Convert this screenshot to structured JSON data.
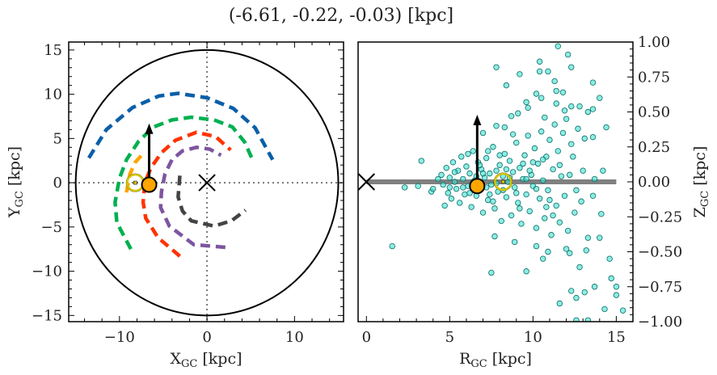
{
  "chart_data": [
    {
      "type": "line",
      "title": "(-6.61, -0.22, -0.03) [kpc]",
      "xlabel": {
        "main": "X",
        "sub": "GC",
        "unit": " [kpc]"
      },
      "ylabel": {
        "main": "Y",
        "sub": "GC",
        "unit": " [kpc]"
      },
      "xlim": [
        -15.8,
        15.6
      ],
      "ylim": [
        -15.7,
        15.9
      ],
      "xticks": [
        -10,
        0,
        10
      ],
      "xtick_labels": [
        "−10",
        "0",
        "10"
      ],
      "yticks": [
        15,
        10,
        5,
        0,
        -5,
        -10,
        -15
      ],
      "ytick_labels": [
        "15",
        "10",
        "5",
        "0",
        "−5",
        "−10",
        "−15"
      ],
      "boundary_circle_radius": 15,
      "reference_lines": {
        "x": 0,
        "y": 0,
        "style": "dotted",
        "color": "#777777"
      },
      "galactic_center_marker": {
        "x": 0,
        "y": 0,
        "marker": "x"
      },
      "sun_marker": {
        "x": -8.2,
        "y": 0,
        "color": "#d4c400"
      },
      "object_marker": {
        "x": -6.61,
        "y": -0.22,
        "color": "#ffa500"
      },
      "velocity_arrow": {
        "from": [
          -6.61,
          -0.22
        ],
        "to": [
          -6.61,
          6.7
        ]
      },
      "series": [
        {
          "color": "#0a5fa8",
          "style": "dashed",
          "points": [
            [
              -13.5,
              2.8
            ],
            [
              -11.5,
              6.0
            ],
            [
              -8.5,
              8.5
            ],
            [
              -5.5,
              9.8
            ],
            [
              -3.3,
              10.1
            ],
            [
              0,
              9.6
            ],
            [
              3,
              8.4
            ],
            [
              5.5,
              6.2
            ],
            [
              7.5,
              2.6
            ]
          ]
        },
        {
          "color": "#00b050",
          "style": "dashed",
          "points": [
            [
              -8.7,
              -7.5
            ],
            [
              -10.3,
              -4.5
            ],
            [
              -10.5,
              -2.2
            ],
            [
              -10.0,
              0.5
            ],
            [
              -9.2,
              2.6
            ],
            [
              -7.8,
              4.7
            ],
            [
              -6.1,
              6.3
            ],
            [
              -4,
              7.1
            ],
            [
              -1.8,
              7.4
            ],
            [
              0.8,
              7.1
            ],
            [
              2.9,
              6.3
            ],
            [
              4.3,
              4.6
            ],
            [
              5.2,
              2.6
            ]
          ]
        },
        {
          "color": "#ffa500",
          "style": "dashed",
          "points": [
            [
              -9.2,
              -1.1
            ],
            [
              -8.8,
              1.0
            ],
            [
              -8.2,
              2.3
            ],
            [
              -7.3,
              3.3
            ]
          ]
        },
        {
          "color": "#ff3300",
          "style": "dashed",
          "points": [
            [
              -3.1,
              -8.3
            ],
            [
              -5.6,
              -6.2
            ],
            [
              -7.0,
              -4.0
            ],
            [
              -7.3,
              -2.2
            ],
            [
              -7.1,
              0
            ],
            [
              -6.4,
              1.7
            ],
            [
              -5.2,
              3.4
            ],
            [
              -3.6,
              4.8
            ],
            [
              -1.2,
              5.7
            ],
            [
              1,
              5.2
            ],
            [
              2.7,
              3.7
            ]
          ]
        },
        {
          "color": "#7d55a0",
          "style": "dashed",
          "points": [
            [
              2.1,
              -7.3
            ],
            [
              -1.5,
              -7.0
            ],
            [
              -4.3,
              -4.9
            ],
            [
              -5.3,
              -2.8
            ],
            [
              -5.2,
              -1.0
            ],
            [
              -4.8,
              1.0
            ],
            [
              -4,
              2.6
            ],
            [
              -2.8,
              3.6
            ],
            [
              -1.2,
              4.0
            ],
            [
              0.3,
              3.8
            ],
            [
              1.6,
              3.1
            ]
          ]
        },
        {
          "color": "#444444",
          "style": "dashed",
          "points": [
            [
              -3.1,
              0.8
            ],
            [
              -3.3,
              -1.6
            ],
            [
              -2.8,
              -3.2
            ],
            [
              -1.8,
              -4.3
            ],
            [
              0.8,
              -4.9
            ],
            [
              2.8,
              -4.3
            ],
            [
              4.4,
              -3.1
            ]
          ]
        }
      ]
    },
    {
      "type": "scatter",
      "xlabel": {
        "main": "R",
        "sub": "GC",
        "unit": " [kpc]"
      },
      "ylabel": {
        "main": "Z",
        "sub": "GC",
        "unit": " [kpc]"
      },
      "xlim": [
        -0.5,
        16.0
      ],
      "ylim": [
        -1.0,
        1.0
      ],
      "xticks": [
        0,
        5,
        10,
        15
      ],
      "xtick_labels": [
        "0",
        "5",
        "10",
        "15"
      ],
      "yticks": [
        1.0,
        0.75,
        0.5,
        0.25,
        0.0,
        -0.25,
        -0.5,
        -0.75,
        -1.0
      ],
      "ytick_labels": [
        "1.00",
        "0.75",
        "0.50",
        "0.25",
        "0.00",
        "−0.25",
        "−0.50",
        "−0.75",
        "−1.00"
      ],
      "point_color": "#40e0d0",
      "disk_line": {
        "from": 0,
        "to": 15,
        "z": 0,
        "color": "#808080"
      },
      "galactic_center_marker": {
        "x": 0,
        "y": 0,
        "marker": "x"
      },
      "sun_marker": {
        "x": 8.2,
        "y": 0,
        "color": "#d4c400"
      },
      "object_marker": {
        "x": 6.65,
        "y": -0.03,
        "color": "#ffa500"
      },
      "velocity_arrow": {
        "from": [
          6.65,
          -0.03
        ],
        "to": [
          6.65,
          0.48
        ]
      },
      "points": [
        [
          11.5,
          0.97
        ],
        [
          12.1,
          0.91
        ],
        [
          7.8,
          0.82
        ],
        [
          10.4,
          0.86
        ],
        [
          12.3,
          0.82
        ],
        [
          13.6,
          0.71
        ],
        [
          14.0,
          0.6
        ],
        [
          14.4,
          0.39
        ],
        [
          8.4,
          0.69
        ],
        [
          9.2,
          0.77
        ],
        [
          1.55,
          -0.46
        ],
        [
          3.3,
          0.15
        ],
        [
          2.3,
          -0.04
        ],
        [
          3.1,
          -0.03
        ],
        [
          3.9,
          -0.07
        ],
        [
          4.7,
          -0.17
        ],
        [
          7.5,
          -0.65
        ],
        [
          9.6,
          -0.64
        ],
        [
          14.6,
          -0.55
        ],
        [
          14.7,
          -0.69
        ],
        [
          15.0,
          -0.75
        ],
        [
          15.0,
          -0.81
        ],
        [
          14.3,
          -0.91
        ],
        [
          15.4,
          -0.92
        ],
        [
          11.6,
          -0.87
        ],
        [
          12.6,
          -0.83
        ],
        [
          13.1,
          -0.79
        ],
        [
          13.7,
          -0.75
        ],
        [
          12.3,
          -0.78
        ],
        [
          13.3,
          -0.99
        ],
        [
          12.6,
          -0.99
        ],
        [
          12.8,
          -0.61
        ],
        [
          14.0,
          -0.4
        ],
        [
          14.1,
          -0.23
        ],
        [
          13.6,
          -0.1
        ],
        [
          14.2,
          0.08
        ],
        [
          13.7,
          0.02
        ],
        [
          7.7,
          -0.39
        ],
        [
          10.6,
          -0.55
        ],
        [
          10.9,
          -0.5
        ],
        [
          12.2,
          -0.51
        ],
        [
          13.2,
          -0.49
        ],
        [
          12.0,
          -0.48
        ],
        [
          8.9,
          -0.43
        ],
        [
          10.2,
          -0.46
        ],
        [
          10.7,
          0.46
        ],
        [
          13.6,
          0.32
        ],
        [
          13.6,
          0.52
        ],
        [
          12.3,
          0.54
        ],
        [
          11.8,
          0.64
        ],
        [
          11.4,
          0.65
        ],
        [
          11.3,
          0.72
        ],
        [
          10.2,
          0.63
        ],
        [
          10.5,
          0.6
        ],
        [
          10.9,
          0.79
        ],
        [
          10.4,
          0.79
        ],
        [
          8.7,
          0.47
        ],
        [
          9.1,
          0.49
        ],
        [
          7.8,
          0.4
        ],
        [
          7.0,
          0.35
        ],
        [
          9.7,
          0.53
        ],
        [
          9.6,
          0.57
        ],
        [
          11.4,
          0.56
        ],
        [
          11.9,
          0.51
        ],
        [
          12.8,
          0.54
        ],
        [
          13.3,
          0.5
        ],
        [
          6.1,
          0.2
        ],
        [
          7.3,
          0.22
        ],
        [
          8.3,
          0.39
        ],
        [
          8.8,
          0.34
        ],
        [
          4.5,
          0.05
        ],
        [
          4.6,
          -0.02
        ],
        [
          4.8,
          0.1
        ],
        [
          4.9,
          -0.08
        ],
        [
          5.0,
          0.03
        ],
        [
          5.1,
          -0.12
        ],
        [
          5.2,
          0.14
        ],
        [
          5.3,
          0.0
        ],
        [
          5.4,
          -0.05
        ],
        [
          5.5,
          0.08
        ],
        [
          5.6,
          -0.15
        ],
        [
          5.7,
          0.18
        ],
        [
          5.8,
          0.02
        ],
        [
          5.9,
          -0.09
        ],
        [
          6.0,
          0.11
        ],
        [
          6.1,
          -0.03
        ],
        [
          6.2,
          0.06
        ],
        [
          6.3,
          -0.18
        ],
        [
          6.4,
          0.22
        ],
        [
          6.5,
          0.01
        ],
        [
          6.6,
          -0.1
        ],
        [
          6.7,
          0.14
        ],
        [
          6.8,
          -0.05
        ],
        [
          6.9,
          0.09
        ],
        [
          7.0,
          -0.22
        ],
        [
          7.1,
          0.03
        ],
        [
          7.2,
          0.17
        ],
        [
          7.3,
          -0.13
        ],
        [
          7.4,
          0.06
        ],
        [
          7.5,
          -0.02
        ],
        [
          7.6,
          0.25
        ],
        [
          7.7,
          -0.19
        ],
        [
          7.8,
          0.08
        ],
        [
          7.9,
          -0.07
        ],
        [
          8.0,
          0.12
        ],
        [
          8.1,
          -0.28
        ],
        [
          8.2,
          0.04
        ],
        [
          8.3,
          0.2
        ],
        [
          8.4,
          -0.11
        ],
        [
          8.5,
          0.0
        ],
        [
          8.6,
          0.15
        ],
        [
          8.7,
          -0.24
        ],
        [
          8.8,
          0.07
        ],
        [
          8.9,
          -0.04
        ],
        [
          9.0,
          0.28
        ],
        [
          9.1,
          -0.15
        ],
        [
          9.2,
          0.1
        ],
        [
          9.3,
          -0.3
        ],
        [
          9.4,
          0.02
        ],
        [
          9.5,
          0.19
        ],
        [
          9.6,
          -0.09
        ],
        [
          9.7,
          0.33
        ],
        [
          9.8,
          -0.21
        ],
        [
          9.9,
          0.05
        ],
        [
          10.0,
          -0.03
        ],
        [
          10.1,
          0.24
        ],
        [
          10.2,
          -0.33
        ],
        [
          10.3,
          0.13
        ],
        [
          10.4,
          -0.12
        ],
        [
          10.5,
          0.36
        ],
        [
          10.6,
          0.01
        ],
        [
          10.7,
          -0.26
        ],
        [
          10.8,
          0.18
        ],
        [
          10.9,
          -0.06
        ],
        [
          11.0,
          0.3
        ],
        [
          11.1,
          -0.38
        ],
        [
          11.2,
          0.09
        ],
        [
          11.3,
          0.41
        ],
        [
          11.4,
          -0.17
        ],
        [
          11.5,
          0.22
        ],
        [
          11.6,
          -0.29
        ],
        [
          11.7,
          0.04
        ],
        [
          11.8,
          0.35
        ],
        [
          11.9,
          -0.1
        ],
        [
          12.0,
          0.45
        ],
        [
          12.1,
          -0.35
        ],
        [
          12.3,
          0.27
        ],
        [
          12.5,
          -0.22
        ],
        [
          12.7,
          0.38
        ],
        [
          12.9,
          -0.14
        ],
        [
          13.1,
          0.31
        ],
        [
          13.3,
          -0.4
        ],
        [
          5.3,
          0.07
        ],
        [
          5.8,
          -0.04
        ],
        [
          6.2,
          -0.08
        ],
        [
          6.6,
          0.04
        ],
        [
          7.0,
          0.06
        ],
        [
          7.4,
          -0.09
        ],
        [
          7.8,
          -0.01
        ],
        [
          8.2,
          -0.06
        ],
        [
          8.6,
          0.03
        ],
        [
          9.0,
          -0.08
        ],
        [
          9.4,
          0.13
        ],
        [
          9.8,
          0.08
        ],
        [
          10.2,
          -0.05
        ],
        [
          10.6,
          0.16
        ],
        [
          11.0,
          -0.13
        ],
        [
          7.2,
          -0.04
        ],
        [
          8.4,
          0.09
        ],
        [
          9.6,
          0.02
        ],
        [
          6.4,
          0.0
        ],
        [
          5.0,
          -0.04
        ],
        [
          10.8,
          -0.18
        ],
        [
          11.6,
          0.12
        ],
        [
          12.2,
          0.05
        ],
        [
          12.6,
          -0.06
        ],
        [
          9.2,
          -0.19
        ],
        [
          8.0,
          0.19
        ],
        [
          7.6,
          -0.14
        ],
        [
          6.8,
          0.12
        ],
        [
          10.0,
          0.14
        ],
        [
          11.2,
          -0.24
        ],
        [
          12.4,
          0.18
        ],
        [
          13.0,
          0.08
        ],
        [
          4.3,
          0.02
        ],
        [
          4.0,
          -0.05
        ]
      ]
    }
  ]
}
